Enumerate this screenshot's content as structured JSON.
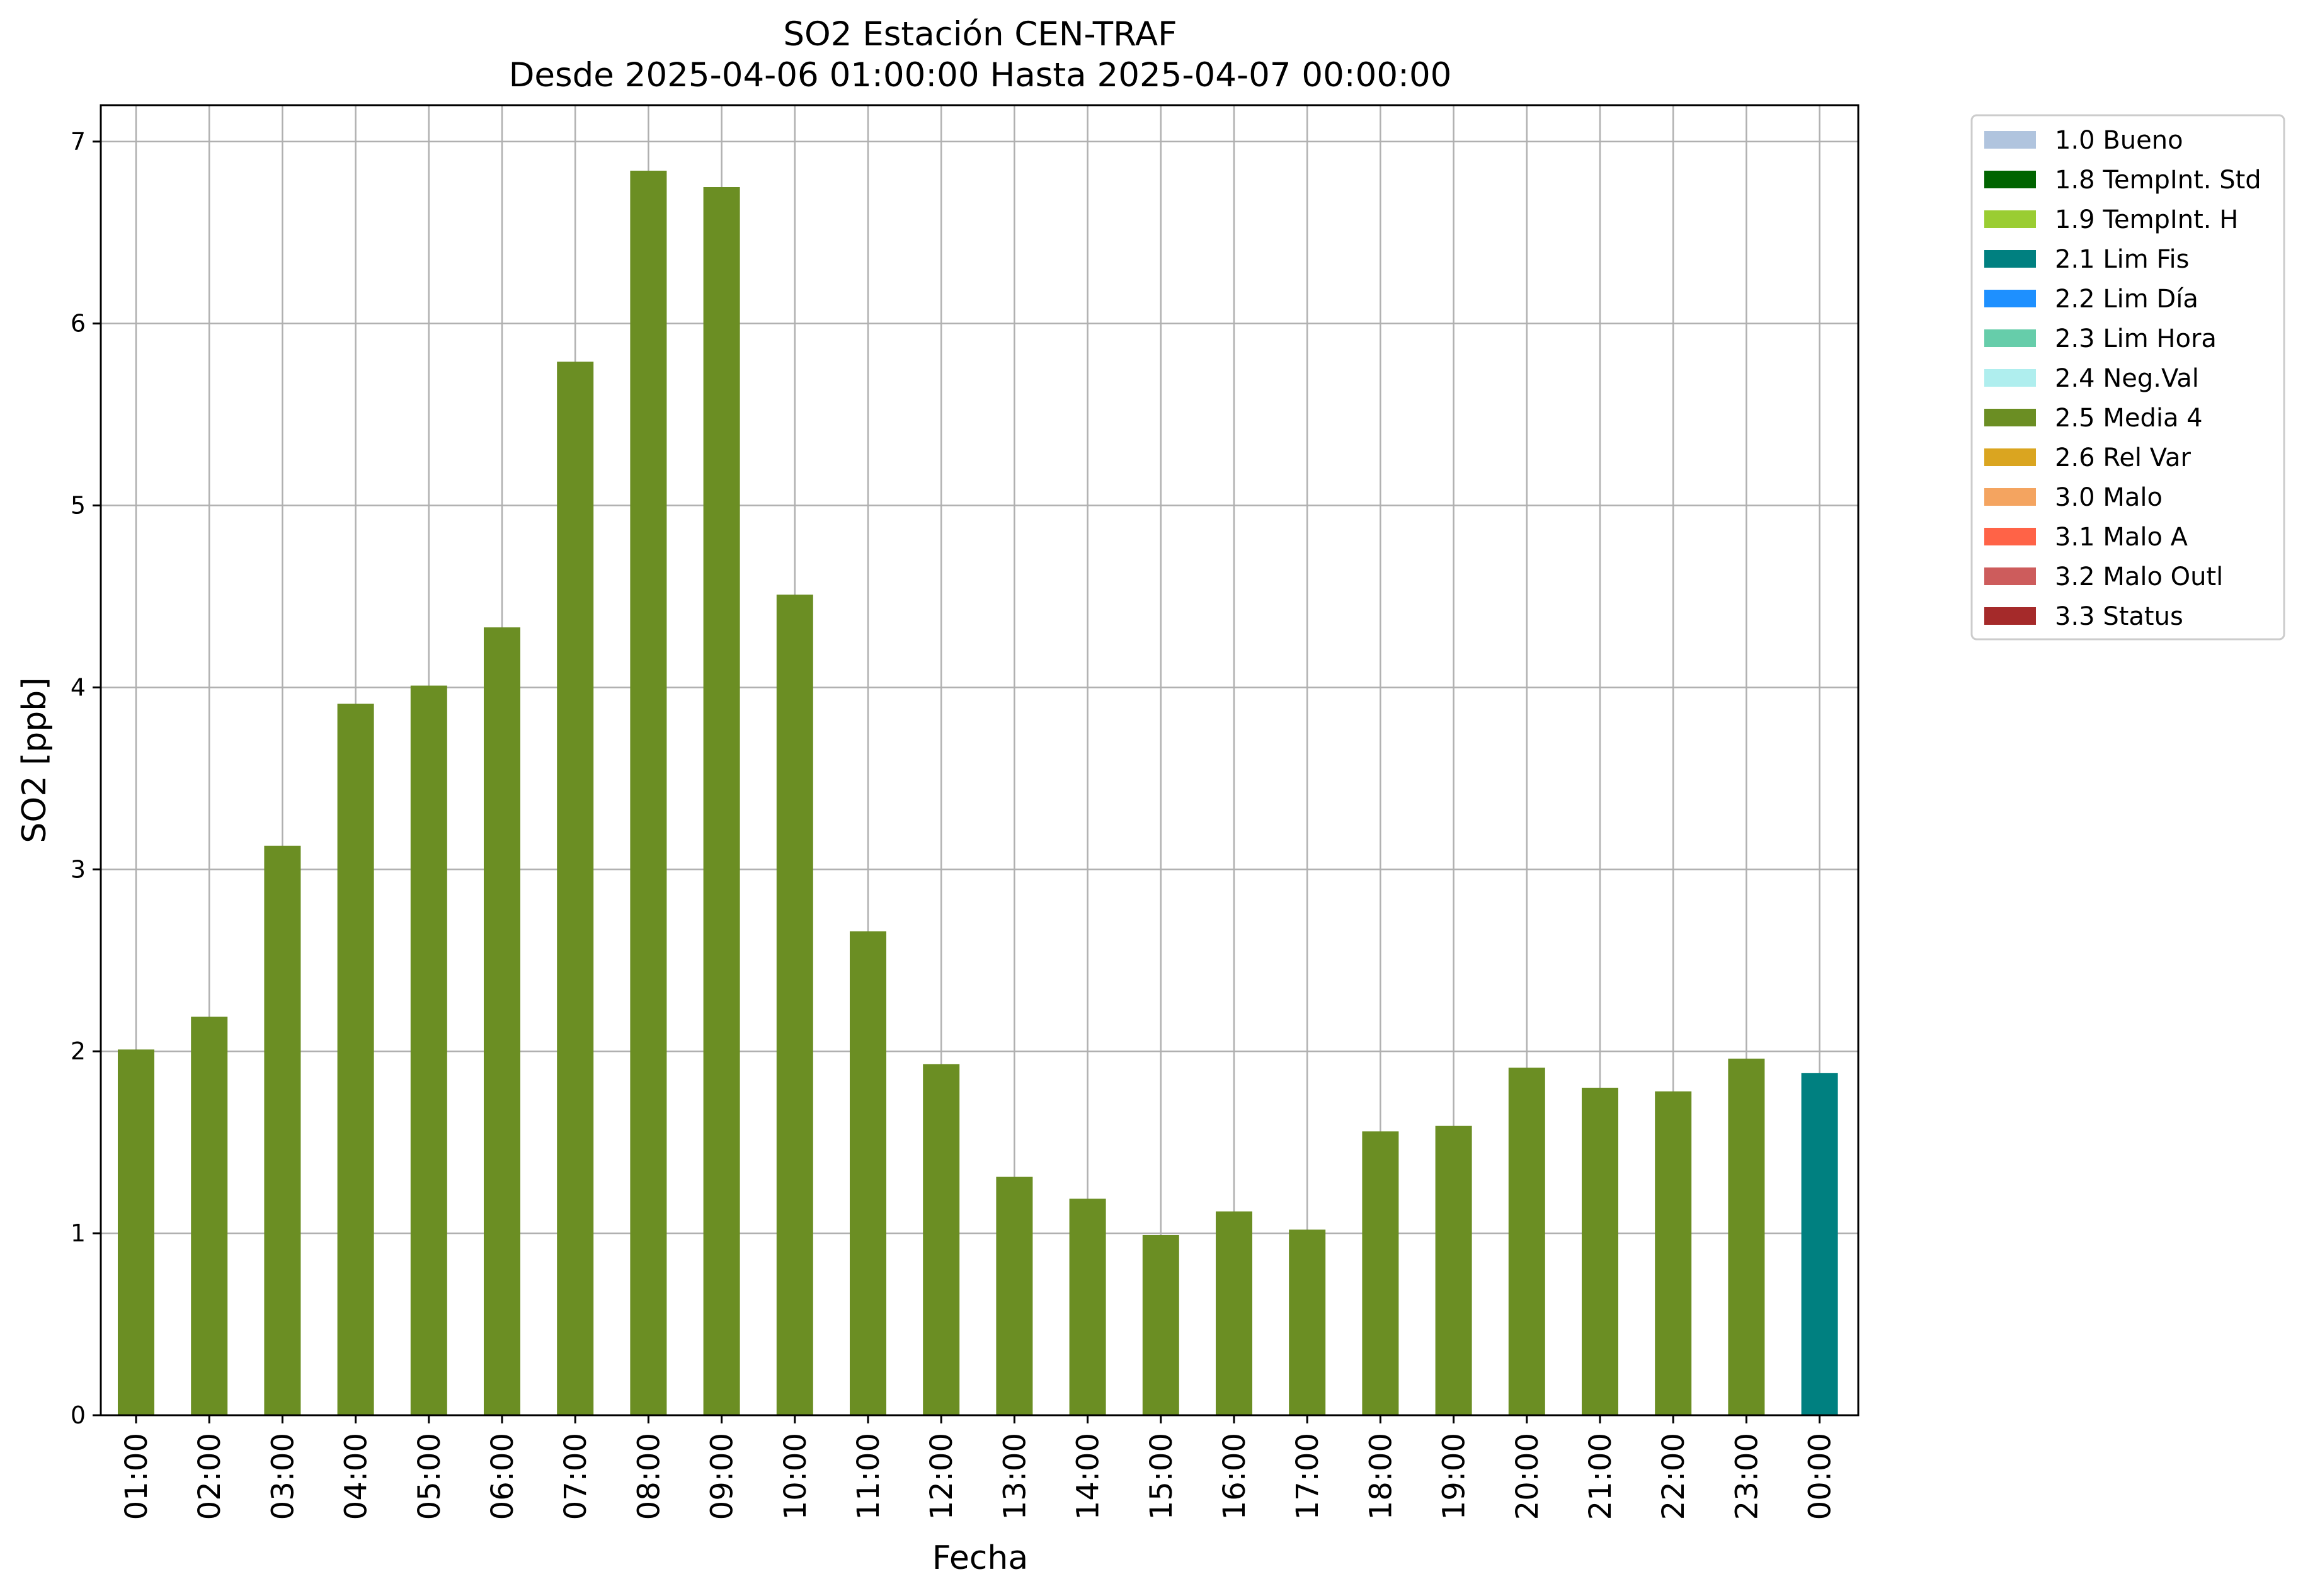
{
  "chart_data": {
    "type": "bar",
    "title_line1": "SO2 Estación CEN-TRAF",
    "title_line2": "Desde 2025-04-06 01:00:00 Hasta 2025-04-07 00:00:00",
    "xlabel": "Fecha",
    "ylabel": "SO2 [ppb]",
    "ylim": [
      0,
      7.2
    ],
    "yticks": [
      "0",
      "1",
      "2",
      "3",
      "4",
      "5",
      "6",
      "7"
    ],
    "grid": true,
    "legend_placement": "outside-top-right",
    "categories": [
      "01:00",
      "02:00",
      "03:00",
      "04:00",
      "05:00",
      "06:00",
      "07:00",
      "08:00",
      "09:00",
      "10:00",
      "11:00",
      "12:00",
      "13:00",
      "14:00",
      "15:00",
      "16:00",
      "17:00",
      "18:00",
      "19:00",
      "20:00",
      "21:00",
      "22:00",
      "23:00",
      "00:00"
    ],
    "values": [
      2.01,
      2.19,
      3.13,
      3.91,
      4.01,
      4.33,
      5.79,
      6.84,
      6.75,
      4.51,
      2.66,
      1.93,
      1.31,
      1.19,
      0.99,
      1.12,
      1.02,
      1.56,
      1.59,
      1.91,
      1.8,
      1.78,
      1.96,
      1.88
    ],
    "bar_flags": [
      "2.5 Media 4",
      "2.5 Media 4",
      "2.5 Media 4",
      "2.5 Media 4",
      "2.5 Media 4",
      "2.5 Media 4",
      "2.5 Media 4",
      "2.5 Media 4",
      "2.5 Media 4",
      "2.5 Media 4",
      "2.5 Media 4",
      "2.5 Media 4",
      "2.5 Media 4",
      "2.5 Media 4",
      "2.5 Media 4",
      "2.5 Media 4",
      "2.5 Media 4",
      "2.5 Media 4",
      "2.5 Media 4",
      "2.5 Media 4",
      "2.5 Media 4",
      "2.5 Media 4",
      "2.5 Media 4",
      "2.1 Lim Fis"
    ],
    "legend": [
      {
        "label": "1.0 Bueno",
        "color": "#b0c4de"
      },
      {
        "label": "1.8 TempInt. Std",
        "color": "#006400"
      },
      {
        "label": "1.9 TempInt. H",
        "color": "#9acd32"
      },
      {
        "label": "2.1 Lim Fis",
        "color": "#008080"
      },
      {
        "label": "2.2 Lim Día",
        "color": "#1e90ff"
      },
      {
        "label": "2.3 Lim Hora",
        "color": "#66cdaa"
      },
      {
        "label": "2.4 Neg.Val",
        "color": "#afeeee"
      },
      {
        "label": "2.5 Media 4",
        "color": "#6b8e23"
      },
      {
        "label": "2.6 Rel Var",
        "color": "#daa520"
      },
      {
        "label": "3.0 Malo",
        "color": "#f4a460"
      },
      {
        "label": "3.1 Malo A",
        "color": "#ff6347"
      },
      {
        "label": "3.2 Malo Outl",
        "color": "#cd5c5c"
      },
      {
        "label": "3.3 Status",
        "color": "#a52a2a"
      }
    ]
  }
}
